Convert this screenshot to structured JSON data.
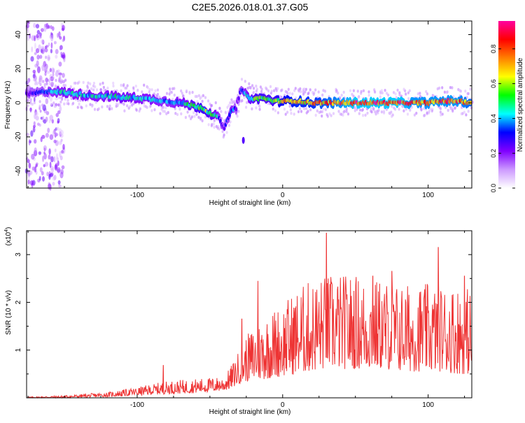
{
  "title": "C2E5.2026.018.01.37.G05",
  "chart_data": [
    {
      "type": "heatmap",
      "xlabel": "Height of straight line (km)",
      "ylabel": "Frequency (Hz)",
      "xlim": [
        -176,
        130
      ],
      "ylim": [
        -50,
        48
      ],
      "xticks": [
        -100,
        0,
        100
      ],
      "yticks": [
        -40,
        -20,
        0,
        20,
        40
      ],
      "colorbar": {
        "label": "Normalized spectral amplitude",
        "range": [
          0,
          0.96
        ],
        "ticks": [
          "0.0",
          "0.2",
          "0.4",
          "0.6",
          "0.8"
        ],
        "tick_values": [
          0,
          0.2,
          0.4,
          0.6,
          0.8
        ],
        "colormap": [
          "#ffffff",
          "#cc99ff",
          "#8000ff",
          "#0000ff",
          "#00ffff",
          "#00ff00",
          "#ffff00",
          "#ff8000",
          "#ff0000",
          "#ff00a0"
        ]
      },
      "ridge": {
        "x": [
          -176,
          -160,
          -150,
          -140,
          -130,
          -120,
          -110,
          -100,
          -90,
          -80,
          -70,
          -60,
          -55,
          -50,
          -45,
          -42,
          -40,
          -38,
          -35,
          -32,
          -30,
          -28,
          -25,
          -20,
          -15,
          -10,
          -5,
          0,
          10,
          20,
          30,
          40,
          50,
          60,
          70,
          80,
          90,
          100,
          110,
          120,
          130
        ],
        "frequency": [
          5,
          7,
          6,
          5,
          4,
          4,
          3,
          3,
          2,
          1,
          0,
          -2,
          -3,
          -6,
          -8,
          -12,
          -16,
          -9,
          -5,
          -3,
          4,
          8,
          4,
          2,
          3,
          2,
          1,
          1,
          1,
          0,
          0,
          0,
          0,
          0,
          0,
          0,
          0,
          0,
          1,
          1,
          0
        ],
        "amplitude": [
          0.25,
          0.4,
          0.45,
          0.45,
          0.45,
          0.45,
          0.5,
          0.45,
          0.45,
          0.4,
          0.45,
          0.55,
          0.6,
          0.55,
          0.45,
          0.3,
          0.25,
          0.35,
          0.45,
          0.25,
          0.3,
          0.35,
          0.45,
          0.55,
          0.6,
          0.55,
          0.6,
          0.7,
          0.75,
          0.75,
          0.8,
          0.85,
          0.9,
          0.9,
          0.9,
          0.9,
          0.85,
          0.85,
          0.85,
          0.85,
          0.8
        ]
      },
      "noise_region": {
        "x_range": [
          -176,
          -150
        ],
        "frequency_range": [
          -50,
          48
        ],
        "amplitude": [
          0.05,
          0.25
        ]
      }
    },
    {
      "type": "line",
      "color": "#ee3333",
      "xlabel": "Height of straight line (km)",
      "ylabel": "SNR (10 * v/v)",
      "yscale_label": "(x10",
      "yscale_exp": "4",
      "xlim": [
        -176,
        130
      ],
      "ylim": [
        0,
        3.5
      ],
      "xticks": [
        -100,
        0,
        100
      ],
      "yticks": [
        1,
        2,
        3
      ],
      "envelope": {
        "x": [
          -176,
          -150,
          -120,
          -100,
          -80,
          -60,
          -40,
          -35,
          -30,
          -25,
          -20,
          -10,
          0,
          10,
          20,
          30,
          40,
          50,
          60,
          70,
          80,
          90,
          100,
          110,
          120,
          130
        ],
        "lower": [
          0.0,
          0.0,
          0.02,
          0.05,
          0.08,
          0.1,
          0.15,
          0.2,
          0.3,
          0.35,
          0.35,
          0.4,
          0.45,
          0.5,
          0.55,
          0.6,
          0.6,
          0.6,
          0.6,
          0.6,
          0.55,
          0.55,
          0.55,
          0.55,
          0.5,
          0.5
        ],
        "upper": [
          0.02,
          0.05,
          0.12,
          0.22,
          0.35,
          0.4,
          0.45,
          0.7,
          1.0,
          1.3,
          1.5,
          1.8,
          2.0,
          2.3,
          2.5,
          2.6,
          2.6,
          2.6,
          2.5,
          2.5,
          2.4,
          2.4,
          2.4,
          2.4,
          2.4,
          2.3
        ]
      },
      "peaks": [
        {
          "x": -82,
          "y": 0.68
        },
        {
          "x": -28,
          "y": 1.65
        },
        {
          "x": -17,
          "y": 2.45
        },
        {
          "x": 30,
          "y": 3.45
        },
        {
          "x": 62,
          "y": 2.55
        },
        {
          "x": 75,
          "y": 2.65
        },
        {
          "x": 107,
          "y": 3.15
        },
        {
          "x": 125,
          "y": 2.55
        }
      ]
    }
  ]
}
